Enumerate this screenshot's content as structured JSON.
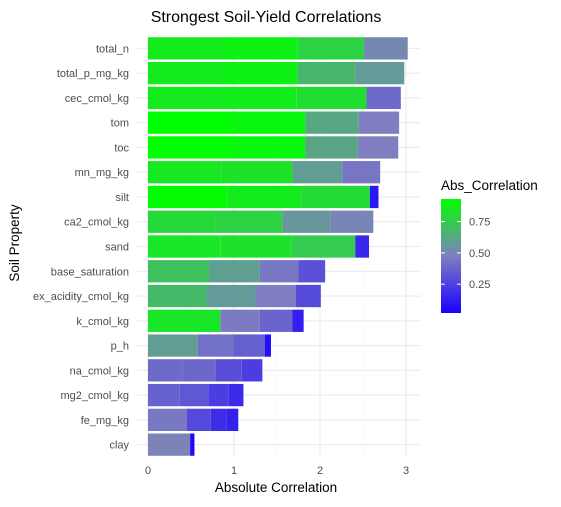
{
  "chart_data": {
    "type": "bar",
    "orientation": "horizontal",
    "stacked": true,
    "title": "Strongest Soil-Yield Correlations",
    "xlabel": "Absolute Correlation",
    "ylabel": "Soil Property",
    "xlim": [
      0,
      3.15
    ],
    "xticks": [
      0,
      1,
      2,
      3
    ],
    "grid": true,
    "legend": {
      "title": "Abs_Correlation",
      "position": "right",
      "ticks": [
        0.25,
        0.5,
        0.75
      ],
      "range": [
        0.02,
        0.93
      ],
      "color_low": "#1a00ff",
      "color_mid": "#7f7fbf",
      "color_high": "#00ff00"
    },
    "categories": [
      "total_n",
      "total_p_mg_kg",
      "cec_cmol_kg",
      "tom",
      "toc",
      "mn_mg_kg",
      "silt",
      "ca2_cmol_kg",
      "sand",
      "base_saturation",
      "ex_acidity_cmol_kg",
      "k_cmol_kg",
      "p_h",
      "na_cmol_kg",
      "mg2_cmol_kg",
      "fe_mg_kg",
      "clay"
    ],
    "segments": [
      [
        0.86,
        0.88,
        0.77,
        0.51
      ],
      [
        0.86,
        0.88,
        0.67,
        0.57
      ],
      [
        0.86,
        0.87,
        0.81,
        0.4
      ],
      [
        0.93,
        0.9,
        0.62,
        0.47
      ],
      [
        0.93,
        0.9,
        0.61,
        0.47
      ],
      [
        0.85,
        0.83,
        0.58,
        0.44
      ],
      [
        0.92,
        0.86,
        0.8,
        0.1
      ],
      [
        0.79,
        0.77,
        0.56,
        0.5
      ],
      [
        0.84,
        0.83,
        0.74,
        0.16
      ],
      [
        0.71,
        0.59,
        0.45,
        0.31
      ],
      [
        0.68,
        0.57,
        0.47,
        0.29
      ],
      [
        0.84,
        0.46,
        0.38,
        0.13
      ],
      [
        0.58,
        0.42,
        0.36,
        0.07
      ],
      [
        0.4,
        0.39,
        0.3,
        0.24
      ],
      [
        0.37,
        0.33,
        0.24,
        0.17
      ],
      [
        0.45,
        0.28,
        0.18,
        0.14
      ],
      [
        0.49,
        0.05
      ]
    ],
    "totals": [
      3.02,
      2.98,
      2.94,
      2.92,
      2.91,
      2.7,
      2.68,
      2.62,
      2.57,
      2.06,
      2.01,
      1.81,
      1.43,
      1.33,
      1.11,
      1.05,
      0.54
    ]
  }
}
